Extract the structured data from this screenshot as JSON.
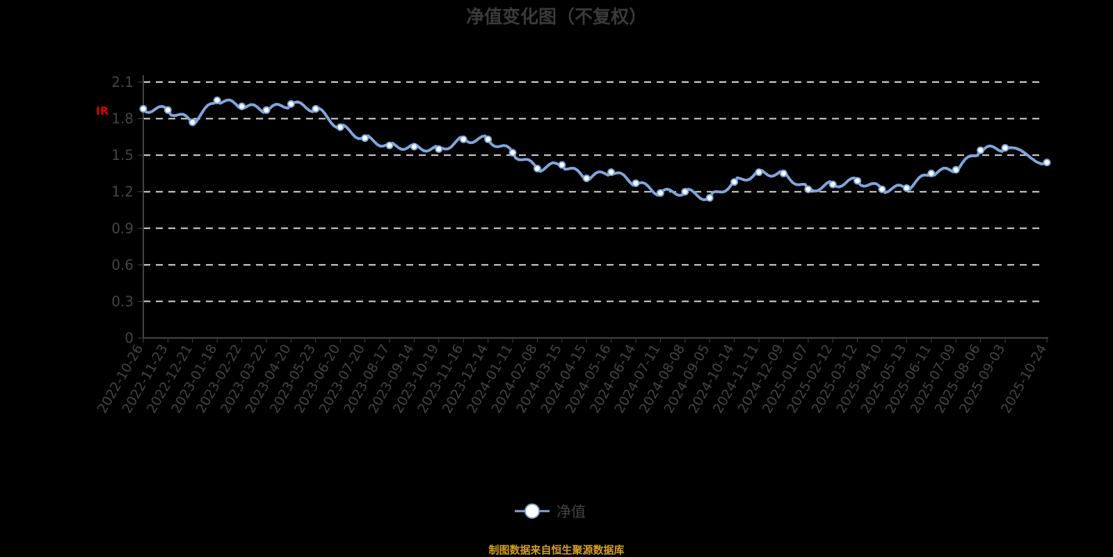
{
  "title": "净值变化图（不复权）",
  "legend": {
    "label": "净值"
  },
  "source": "制图数据来自恒生聚源数据库",
  "marker_glyph": "IR",
  "colors": {
    "line": "#7fa6dc",
    "marker_fill": "#ffffff",
    "grid": "#d9d9d9",
    "axis": "#444444",
    "source": "#d4a017",
    "title": "#3a3a3a"
  },
  "chart_data": {
    "type": "line",
    "title": "净值变化图（不复权）",
    "xlabel": "",
    "ylabel": "",
    "ylim": [
      0,
      2.1
    ],
    "yticks": [
      0,
      0.3,
      0.6,
      0.9,
      1.2,
      1.5,
      1.8,
      2.1
    ],
    "grid": true,
    "legend_position": "bottom",
    "categories": [
      "2022-10-26",
      "2022-11-23",
      "2022-12-21",
      "2023-01-18",
      "2023-02-22",
      "2023-03-22",
      "2023-04-20",
      "2023-05-23",
      "2023-06-20",
      "2023-07-20",
      "2023-08-17",
      "2023-09-14",
      "2023-10-19",
      "2023-11-16",
      "2023-12-14",
      "2024-01-11",
      "2024-02-08",
      "2024-03-15",
      "2024-04-15",
      "2024-05-16",
      "2024-06-14",
      "2024-07-11",
      "2024-08-08",
      "2024-09-05",
      "2024-10-14",
      "2024-11-11",
      "2024-12-09",
      "2025-01-07",
      "2025-02-12",
      "2025-03-12",
      "2025-04-10",
      "2025-05-13",
      "2025-06-11",
      "2025-07-09",
      "2025-08-06",
      "2025-09-03",
      "2025-10-24"
    ],
    "series": [
      {
        "name": "净值",
        "values": [
          1.88,
          1.87,
          1.77,
          1.95,
          1.9,
          1.87,
          1.92,
          1.88,
          1.73,
          1.64,
          1.58,
          1.57,
          1.55,
          1.63,
          1.63,
          1.52,
          1.39,
          1.42,
          1.31,
          1.36,
          1.27,
          1.19,
          1.2,
          1.15,
          1.28,
          1.36,
          1.35,
          1.22,
          1.26,
          1.29,
          1.22,
          1.23,
          1.35,
          1.38,
          1.54,
          1.56,
          1.44
        ]
      }
    ]
  }
}
